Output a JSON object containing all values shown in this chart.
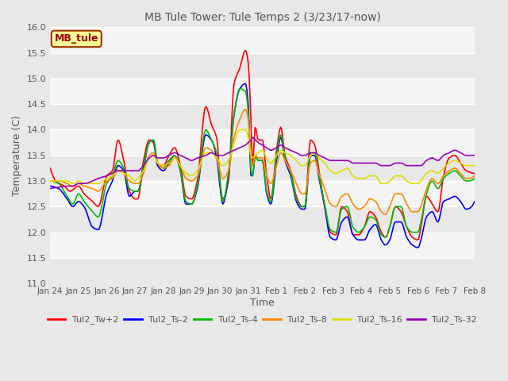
{
  "title": "MB Tule Tower: Tule Temps 2 (3/23/17-now)",
  "xlabel": "Time",
  "ylabel": "Temperature (C)",
  "ylim": [
    11.0,
    16.0
  ],
  "yticks": [
    11.0,
    11.5,
    12.0,
    12.5,
    13.0,
    13.5,
    14.0,
    14.5,
    15.0,
    15.5,
    16.0
  ],
  "bg_color": "#e8e8e8",
  "plot_bg_color": "#f0f0f0",
  "grid_color": "#ffffff",
  "legend_box_facecolor": "#ffff99",
  "legend_box_edgecolor": "#993300",
  "legend_box_textcolor": "#990000",
  "series_colors": {
    "Tul2_Tw+2": "#ff0000",
    "Tul2_Ts-2": "#0000ff",
    "Tul2_Ts-4": "#00bb00",
    "Tul2_Ts-8": "#ff8800",
    "Tul2_Ts-16": "#dddd00",
    "Tul2_Ts-32": "#9900bb"
  },
  "xtick_labels": [
    "Jan 24",
    "Jan 25",
    "Jan 26",
    "Jan 27",
    "Jan 28",
    "Jan 29",
    "Jan 30",
    "Jan 31",
    "Feb 1",
    "Feb 2",
    "Feb 3",
    "Feb 4",
    "Feb 5",
    "Feb 6",
    "Feb 7",
    "Feb 8"
  ]
}
